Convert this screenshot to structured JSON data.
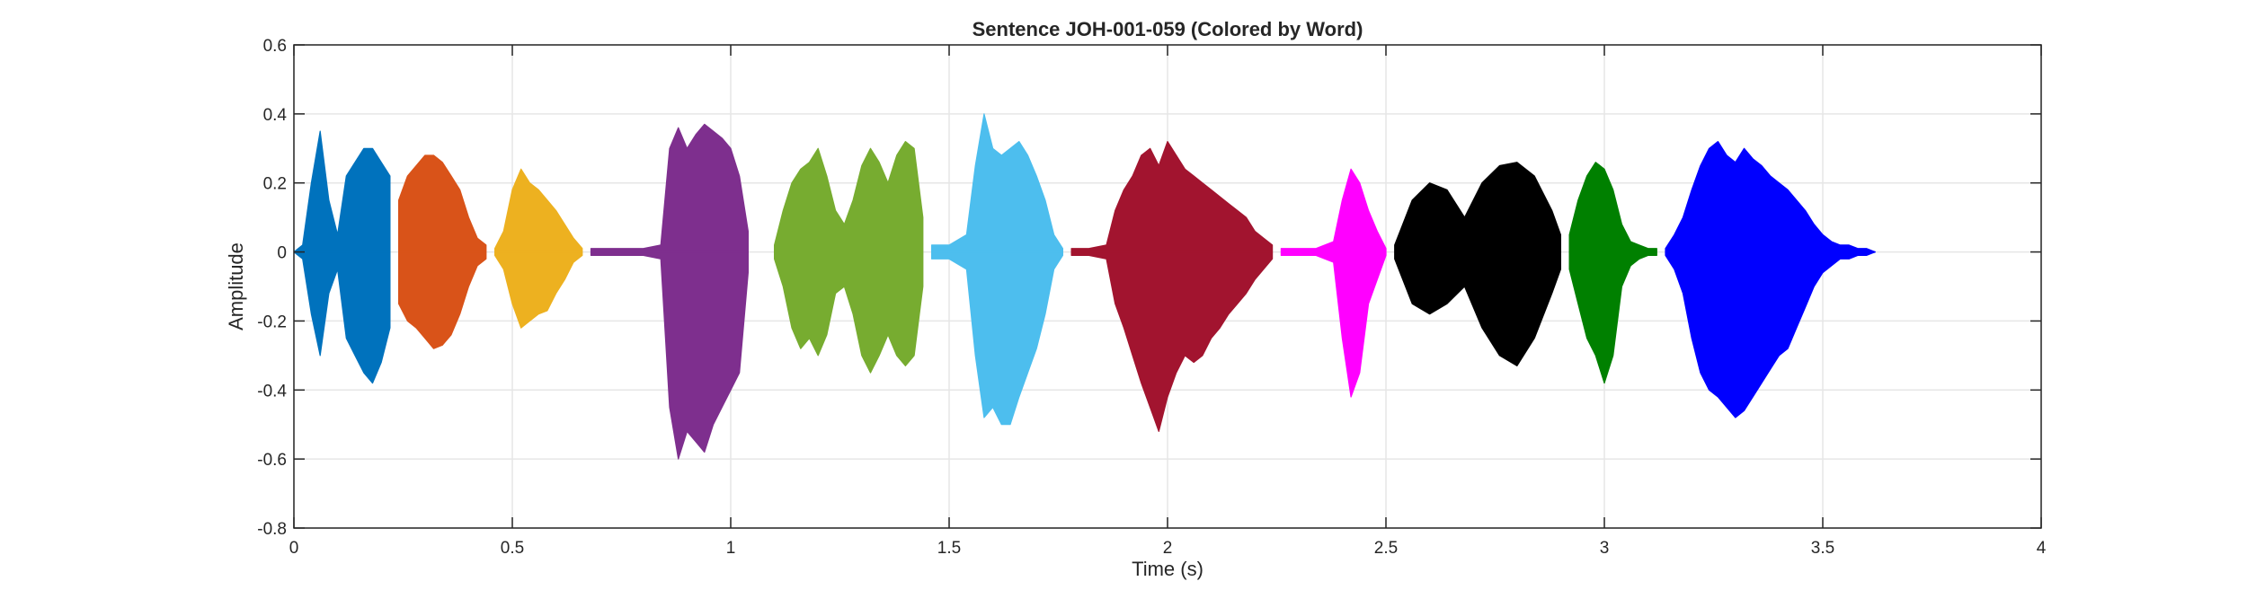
{
  "chart_data": {
    "type": "line",
    "title": "Sentence JOH-001-059 (Colored by Word)",
    "xlabel": "Time (s)",
    "ylabel": "Amplitude",
    "xlim": [
      0,
      4
    ],
    "ylim": [
      -0.8,
      0.6
    ],
    "xticks": [
      0,
      0.5,
      1,
      1.5,
      2,
      2.5,
      3,
      3.5,
      4
    ],
    "xtick_labels": [
      "0",
      "0.5",
      "1",
      "1.5",
      "2",
      "2.5",
      "3",
      "3.5",
      "4"
    ],
    "yticks": [
      -0.8,
      -0.6,
      -0.4,
      -0.2,
      0,
      0.2,
      0.4,
      0.6
    ],
    "ytick_labels": [
      "-0.8",
      "-0.6",
      "-0.4",
      "-0.2",
      "0",
      "0.2",
      "0.4",
      "0.6"
    ],
    "grid": true,
    "series": [
      {
        "color": "#0072BD",
        "x": [
          0.0,
          0.02,
          0.04,
          0.06,
          0.08,
          0.1,
          0.12,
          0.14,
          0.16,
          0.18,
          0.2,
          0.22
        ],
        "ymax": [
          0.0,
          0.02,
          0.2,
          0.35,
          0.15,
          0.05,
          0.22,
          0.26,
          0.3,
          0.3,
          0.26,
          0.22
        ],
        "ymin": [
          0.0,
          -0.02,
          -0.18,
          -0.3,
          -0.12,
          -0.05,
          -0.25,
          -0.3,
          -0.35,
          -0.38,
          -0.32,
          -0.22
        ]
      },
      {
        "color": "#D95319",
        "x": [
          0.24,
          0.26,
          0.28,
          0.3,
          0.32,
          0.34,
          0.36,
          0.38,
          0.4,
          0.42,
          0.44
        ],
        "ymax": [
          0.15,
          0.22,
          0.25,
          0.28,
          0.28,
          0.26,
          0.22,
          0.18,
          0.1,
          0.04,
          0.02
        ],
        "ymin": [
          -0.15,
          -0.2,
          -0.22,
          -0.25,
          -0.28,
          -0.27,
          -0.24,
          -0.18,
          -0.1,
          -0.04,
          -0.02
        ]
      },
      {
        "color": "#EDB120",
        "x": [
          0.46,
          0.48,
          0.5,
          0.52,
          0.54,
          0.56,
          0.58,
          0.6,
          0.62,
          0.64,
          0.66
        ],
        "ymax": [
          0.01,
          0.06,
          0.18,
          0.24,
          0.2,
          0.18,
          0.15,
          0.12,
          0.08,
          0.04,
          0.01
        ],
        "ymin": [
          -0.01,
          -0.05,
          -0.15,
          -0.22,
          -0.2,
          -0.18,
          -0.17,
          -0.12,
          -0.08,
          -0.03,
          -0.01
        ]
      },
      {
        "color": "#7E2F8E",
        "x": [
          0.68,
          0.72,
          0.76,
          0.8,
          0.84,
          0.86,
          0.88,
          0.9,
          0.92,
          0.94,
          0.96,
          0.98,
          1.0,
          1.02,
          1.04
        ],
        "ymax": [
          0.01,
          0.01,
          0.01,
          0.01,
          0.02,
          0.3,
          0.36,
          0.3,
          0.34,
          0.37,
          0.35,
          0.33,
          0.3,
          0.22,
          0.06
        ],
        "ymin": [
          -0.01,
          -0.01,
          -0.01,
          -0.01,
          -0.02,
          -0.45,
          -0.6,
          -0.52,
          -0.55,
          -0.58,
          -0.5,
          -0.45,
          -0.4,
          -0.35,
          -0.06
        ]
      },
      {
        "color": "#77AC30",
        "x": [
          1.1,
          1.12,
          1.14,
          1.16,
          1.18,
          1.2,
          1.22,
          1.24,
          1.26,
          1.28,
          1.3,
          1.32,
          1.34,
          1.36,
          1.38,
          1.4,
          1.42,
          1.44
        ],
        "ymax": [
          0.02,
          0.12,
          0.2,
          0.24,
          0.26,
          0.3,
          0.22,
          0.12,
          0.08,
          0.15,
          0.25,
          0.3,
          0.26,
          0.2,
          0.28,
          0.32,
          0.3,
          0.1
        ],
        "ymin": [
          -0.02,
          -0.1,
          -0.22,
          -0.28,
          -0.25,
          -0.3,
          -0.24,
          -0.12,
          -0.1,
          -0.18,
          -0.3,
          -0.35,
          -0.3,
          -0.24,
          -0.3,
          -0.33,
          -0.3,
          -0.1
        ]
      },
      {
        "color": "#4DBEEE",
        "x": [
          1.46,
          1.5,
          1.54,
          1.56,
          1.58,
          1.6,
          1.62,
          1.64,
          1.66,
          1.68,
          1.7,
          1.72,
          1.74,
          1.76
        ],
        "ymax": [
          0.02,
          0.02,
          0.05,
          0.25,
          0.4,
          0.3,
          0.28,
          0.3,
          0.32,
          0.28,
          0.22,
          0.15,
          0.05,
          0.01
        ],
        "ymin": [
          -0.02,
          -0.02,
          -0.05,
          -0.3,
          -0.48,
          -0.45,
          -0.5,
          -0.5,
          -0.42,
          -0.35,
          -0.28,
          -0.18,
          -0.05,
          -0.01
        ]
      },
      {
        "color": "#A2142F",
        "x": [
          1.78,
          1.82,
          1.86,
          1.88,
          1.9,
          1.92,
          1.94,
          1.96,
          1.98,
          2.0,
          2.02,
          2.04,
          2.06,
          2.08,
          2.1,
          2.12,
          2.14,
          2.16,
          2.18,
          2.2,
          2.22,
          2.24
        ],
        "ymax": [
          0.01,
          0.01,
          0.02,
          0.12,
          0.18,
          0.22,
          0.28,
          0.3,
          0.25,
          0.32,
          0.28,
          0.24,
          0.22,
          0.2,
          0.18,
          0.16,
          0.14,
          0.12,
          0.1,
          0.06,
          0.04,
          0.02
        ],
        "ymin": [
          -0.01,
          -0.01,
          -0.02,
          -0.15,
          -0.22,
          -0.3,
          -0.38,
          -0.45,
          -0.52,
          -0.42,
          -0.35,
          -0.3,
          -0.32,
          -0.3,
          -0.25,
          -0.22,
          -0.18,
          -0.15,
          -0.12,
          -0.08,
          -0.05,
          -0.02
        ]
      },
      {
        "color": "#FF00FF",
        "x": [
          2.26,
          2.3,
          2.34,
          2.38,
          2.4,
          2.42,
          2.44,
          2.46,
          2.48,
          2.5
        ],
        "ymax": [
          0.01,
          0.01,
          0.01,
          0.03,
          0.15,
          0.24,
          0.2,
          0.12,
          0.06,
          0.01
        ],
        "ymin": [
          -0.01,
          -0.01,
          -0.01,
          -0.03,
          -0.25,
          -0.42,
          -0.35,
          -0.15,
          -0.08,
          -0.01
        ]
      },
      {
        "color": "#000000",
        "x": [
          2.52,
          2.56,
          2.6,
          2.64,
          2.68,
          2.72,
          2.76,
          2.8,
          2.84,
          2.88,
          2.9
        ],
        "ymax": [
          0.02,
          0.15,
          0.2,
          0.18,
          0.1,
          0.2,
          0.25,
          0.26,
          0.22,
          0.12,
          0.05
        ],
        "ymin": [
          -0.02,
          -0.15,
          -0.18,
          -0.15,
          -0.1,
          -0.22,
          -0.3,
          -0.33,
          -0.25,
          -0.12,
          -0.05
        ]
      },
      {
        "color": "#008000",
        "x": [
          2.92,
          2.94,
          2.96,
          2.98,
          3.0,
          3.02,
          3.04,
          3.06,
          3.08,
          3.1,
          3.12
        ],
        "ymax": [
          0.05,
          0.15,
          0.22,
          0.26,
          0.24,
          0.18,
          0.08,
          0.03,
          0.02,
          0.01,
          0.01
        ],
        "ymin": [
          -0.05,
          -0.15,
          -0.25,
          -0.3,
          -0.38,
          -0.3,
          -0.1,
          -0.04,
          -0.02,
          -0.01,
          -0.01
        ]
      },
      {
        "color": "#0000FF",
        "x": [
          3.14,
          3.16,
          3.18,
          3.2,
          3.22,
          3.24,
          3.26,
          3.28,
          3.3,
          3.32,
          3.34,
          3.36,
          3.38,
          3.4,
          3.42,
          3.44,
          3.46,
          3.48,
          3.5,
          3.52,
          3.54,
          3.56,
          3.58,
          3.6,
          3.62
        ],
        "ymax": [
          0.01,
          0.05,
          0.1,
          0.18,
          0.25,
          0.3,
          0.32,
          0.28,
          0.26,
          0.3,
          0.27,
          0.25,
          0.22,
          0.2,
          0.18,
          0.15,
          0.12,
          0.08,
          0.05,
          0.03,
          0.02,
          0.02,
          0.01,
          0.01,
          0.0
        ],
        "ymin": [
          -0.01,
          -0.05,
          -0.12,
          -0.25,
          -0.35,
          -0.4,
          -0.42,
          -0.45,
          -0.48,
          -0.46,
          -0.42,
          -0.38,
          -0.34,
          -0.3,
          -0.28,
          -0.22,
          -0.16,
          -0.1,
          -0.06,
          -0.04,
          -0.02,
          -0.02,
          -0.01,
          -0.01,
          0.0
        ]
      }
    ]
  }
}
